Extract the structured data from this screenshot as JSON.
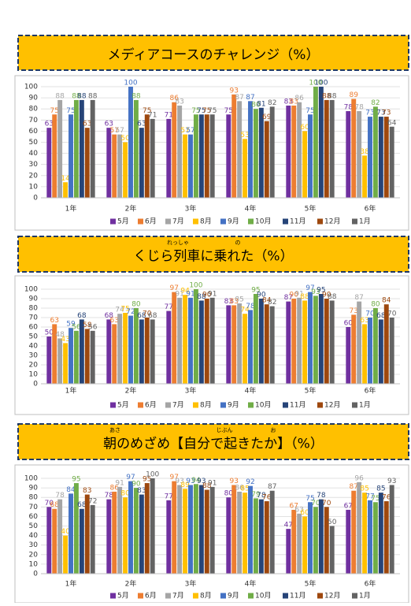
{
  "chart_data": [
    {
      "type": "bar",
      "title": "メディアコースのチャレンジ（%）",
      "title_ruby": [],
      "categories": [
        "1年",
        "2年",
        "3年",
        "4年",
        "5年",
        "6年"
      ],
      "series": [
        {
          "name": "5月",
          "color": "#7030a0",
          "values": [
            63,
            63,
            71,
            75,
            83,
            78
          ]
        },
        {
          "name": "6月",
          "color": "#ed7d31",
          "values": [
            75,
            57,
            86,
            93,
            83,
            89
          ]
        },
        {
          "name": "7月",
          "color": "#a5a5a5",
          "values": [
            88,
            57,
            83,
            87,
            86,
            78
          ]
        },
        {
          "name": "8月",
          "color": "#ffc000",
          "values": [
            14,
            50,
            57,
            53,
            60,
            38
          ]
        },
        {
          "name": "9月",
          "color": "#4472c4",
          "values": [
            75,
            100,
            57,
            87,
            75,
            73
          ]
        },
        {
          "name": "10月",
          "color": "#70ad47",
          "values": [
            88,
            88,
            75,
            80,
            100,
            82
          ]
        },
        {
          "name": "11月",
          "color": "#264478",
          "values": [
            88,
            63,
            75,
            81,
            100,
            73
          ]
        },
        {
          "name": "12月",
          "color": "#9e480e",
          "values": [
            63,
            75,
            75,
            69,
            88,
            73
          ]
        },
        {
          "name": "1月",
          "color": "#636363",
          "values": [
            88,
            71,
            75,
            82,
            88,
            64
          ]
        }
      ],
      "ylim": [
        0,
        100
      ],
      "yticks": [
        0,
        10,
        20,
        30,
        40,
        50,
        60,
        70,
        80,
        90,
        100
      ],
      "grid": true
    },
    {
      "type": "bar",
      "title": "くじら列車に乗れた（%）",
      "title_ruby": [
        "れっしゃ",
        "の"
      ],
      "categories": [
        "1年",
        "2年",
        "3年",
        "4年",
        "5年",
        "6年"
      ],
      "series": [
        {
          "name": "5月",
          "color": "#7030a0",
          "values": [
            50,
            68,
            77,
            83,
            87,
            60
          ]
        },
        {
          "name": "6月",
          "color": "#ed7d31",
          "values": [
            63,
            63,
            97,
            83,
            90,
            73
          ]
        },
        {
          "name": "7月",
          "color": "#a5a5a5",
          "values": [
            48,
            74,
            91,
            85,
            91,
            87
          ]
        },
        {
          "name": "8月",
          "color": "#ffc000",
          "values": [
            43,
            75,
            94,
            74,
            88,
            63
          ]
        },
        {
          "name": "9月",
          "color": "#4472c4",
          "values": [
            59,
            72,
            91,
            78,
            97,
            70
          ]
        },
        {
          "name": "10月",
          "color": "#70ad47",
          "values": [
            56,
            80,
            100,
            95,
            93,
            80
          ]
        },
        {
          "name": "11月",
          "color": "#264478",
          "values": [
            68,
            68,
            88,
            90,
            95,
            68
          ]
        },
        {
          "name": "12月",
          "color": "#9e480e",
          "values": [
            58,
            70,
            90,
            84,
            90,
            84
          ]
        },
        {
          "name": "1月",
          "color": "#636363",
          "values": [
            56,
            68,
            91,
            82,
            88,
            70
          ]
        }
      ],
      "ylim": [
        0,
        100
      ],
      "yticks": [
        0,
        10,
        20,
        30,
        40,
        50,
        60,
        70,
        80,
        90,
        100
      ],
      "grid": true
    },
    {
      "type": "bar",
      "title": "朝のめざめ【自分で起きたか】（%）",
      "title_ruby": [
        "あさ",
        "じぶん",
        "お"
      ],
      "categories": [
        "1年",
        "2年",
        "3年",
        "4年",
        "5年",
        "6年"
      ],
      "series": [
        {
          "name": "5月",
          "color": "#7030a0",
          "values": [
            70,
            78,
            77,
            80,
            47,
            67
          ]
        },
        {
          "name": "6月",
          "color": "#ed7d31",
          "values": [
            68,
            86,
            97,
            93,
            67,
            87
          ]
        },
        {
          "name": "7月",
          "color": "#a5a5a5",
          "values": [
            78,
            91,
            93,
            86,
            63,
            96
          ]
        },
        {
          "name": "8月",
          "color": "#ffc000",
          "values": [
            40,
            80,
            89,
            85,
            60,
            85
          ]
        },
        {
          "name": "9月",
          "color": "#4472c4",
          "values": [
            84,
            97,
            93,
            92,
            75,
            77
          ]
        },
        {
          "name": "10月",
          "color": "#70ad47",
          "values": [
            95,
            90,
            94,
            79,
            70,
            75
          ]
        },
        {
          "name": "11月",
          "color": "#264478",
          "values": [
            68,
            83,
            93,
            78,
            78,
            85
          ]
        },
        {
          "name": "12月",
          "color": "#9e480e",
          "values": [
            83,
            95,
            88,
            76,
            70,
            76
          ]
        },
        {
          "name": "1月",
          "color": "#636363",
          "values": [
            72,
            100,
            91,
            87,
            50,
            93
          ]
        }
      ],
      "ylim": [
        0,
        100
      ],
      "yticks": [
        0,
        10,
        20,
        30,
        40,
        50,
        60,
        70,
        80,
        90,
        100
      ],
      "grid": true
    }
  ]
}
